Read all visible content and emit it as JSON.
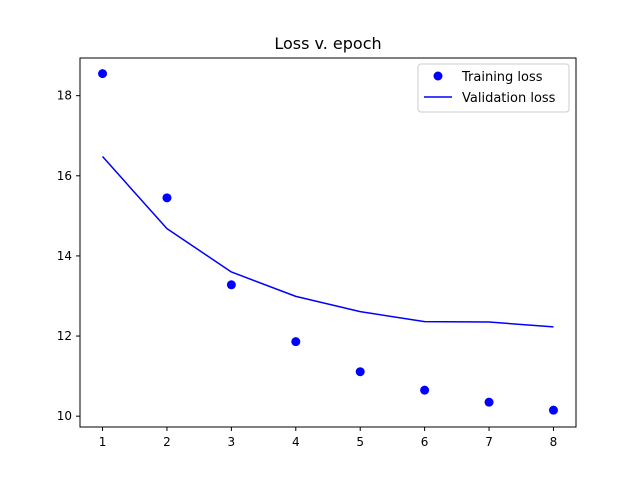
{
  "chart_data": {
    "type": "line",
    "title": "Loss v. epoch",
    "xlabel": "",
    "ylabel": "",
    "x": [
      1,
      2,
      3,
      4,
      5,
      6,
      7,
      8
    ],
    "series": [
      {
        "name": "Training loss",
        "style": "scatter",
        "color": "#0000ff",
        "values": [
          18.55,
          15.45,
          13.28,
          11.86,
          11.11,
          10.65,
          10.35,
          10.15
        ]
      },
      {
        "name": "Validation loss",
        "style": "line",
        "color": "#0000ff",
        "values": [
          16.48,
          14.68,
          13.6,
          12.99,
          12.61,
          12.36,
          12.35,
          12.23
        ]
      }
    ],
    "xlim": [
      0.65,
      8.35
    ],
    "ylim": [
      9.73,
      18.94
    ],
    "xticks": [
      "1",
      "2",
      "3",
      "4",
      "5",
      "6",
      "7",
      "8"
    ],
    "yticks": [
      "10",
      "12",
      "14",
      "16",
      "18"
    ],
    "ytick_values": [
      10,
      12,
      14,
      16,
      18
    ],
    "grid": false,
    "legend_position": "top-right"
  }
}
